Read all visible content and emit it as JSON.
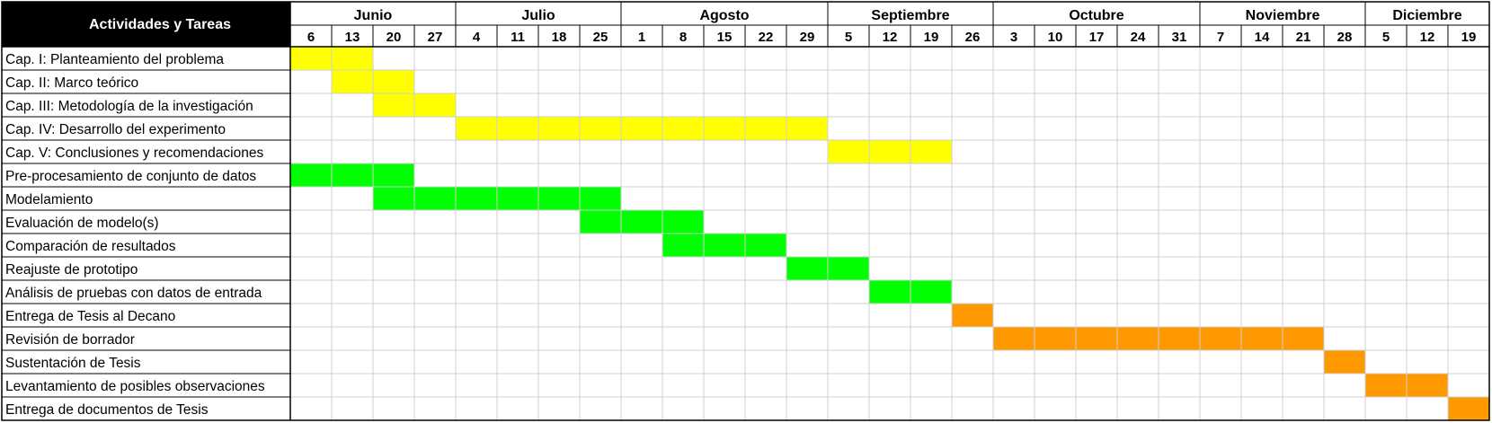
{
  "chart_data": {
    "type": "gantt",
    "header": {
      "activities_label": "Actividades y Tareas"
    },
    "months": [
      {
        "name": "Junio",
        "weeks": [
          "6",
          "13",
          "20",
          "27"
        ]
      },
      {
        "name": "Julio",
        "weeks": [
          "4",
          "11",
          "18",
          "25"
        ]
      },
      {
        "name": "Agosto",
        "weeks": [
          "1",
          "8",
          "15",
          "22",
          "29"
        ]
      },
      {
        "name": "Septiembre",
        "weeks": [
          "5",
          "12",
          "19",
          "26"
        ]
      },
      {
        "name": "Octubre",
        "weeks": [
          "3",
          "10",
          "17",
          "24",
          "31"
        ]
      },
      {
        "name": "Noviembre",
        "weeks": [
          "7",
          "14",
          "21",
          "28"
        ]
      },
      {
        "name": "Diciembre",
        "weeks": [
          "5",
          "12",
          "19"
        ]
      }
    ],
    "colors": {
      "yellow": "#ffff00",
      "green": "#00ff00",
      "orange": "#ff9900"
    },
    "tasks": [
      {
        "label": "Cap. I: Planteamiento del problema",
        "start_week": 0,
        "weeks": 2,
        "color": "#ffff00"
      },
      {
        "label": "Cap. II: Marco teórico",
        "start_week": 1,
        "weeks": 2,
        "color": "#ffff00"
      },
      {
        "label": "Cap. III: Metodología de la investigación",
        "start_week": 2,
        "weeks": 2,
        "color": "#ffff00"
      },
      {
        "label": "Cap. IV: Desarrollo del experimento",
        "start_week": 4,
        "weeks": 9,
        "color": "#ffff00"
      },
      {
        "label": "Cap. V: Conclusiones y recomendaciones",
        "start_week": 13,
        "weeks": 3,
        "color": "#ffff00"
      },
      {
        "label": "Pre-procesamiento de conjunto de datos",
        "start_week": 0,
        "weeks": 3,
        "color": "#00ff00"
      },
      {
        "label": "Modelamiento",
        "start_week": 2,
        "weeks": 6,
        "color": "#00ff00"
      },
      {
        "label": "Evaluación de modelo(s)",
        "start_week": 7,
        "weeks": 3,
        "color": "#00ff00"
      },
      {
        "label": "Comparación de resultados",
        "start_week": 9,
        "weeks": 3,
        "color": "#00ff00"
      },
      {
        "label": "Reajuste de prototipo",
        "start_week": 12,
        "weeks": 2,
        "color": "#00ff00"
      },
      {
        "label": "Análisis de pruebas con datos de entrada",
        "start_week": 14,
        "weeks": 2,
        "color": "#00ff00"
      },
      {
        "label": "Entrega de Tesis al Decano",
        "start_week": 16,
        "weeks": 1,
        "color": "#ff9900"
      },
      {
        "label": "Revisión de borrador",
        "start_week": 17,
        "weeks": 8,
        "color": "#ff9900"
      },
      {
        "label": "Sustentación de Tesis",
        "start_week": 25,
        "weeks": 1,
        "color": "#ff9900"
      },
      {
        "label": "Levantamiento de posibles observaciones",
        "start_week": 26,
        "weeks": 2,
        "color": "#ff9900"
      },
      {
        "label": "Entrega de documentos de Tesis",
        "start_week": 28,
        "weeks": 1,
        "color": "#ff9900"
      }
    ]
  }
}
